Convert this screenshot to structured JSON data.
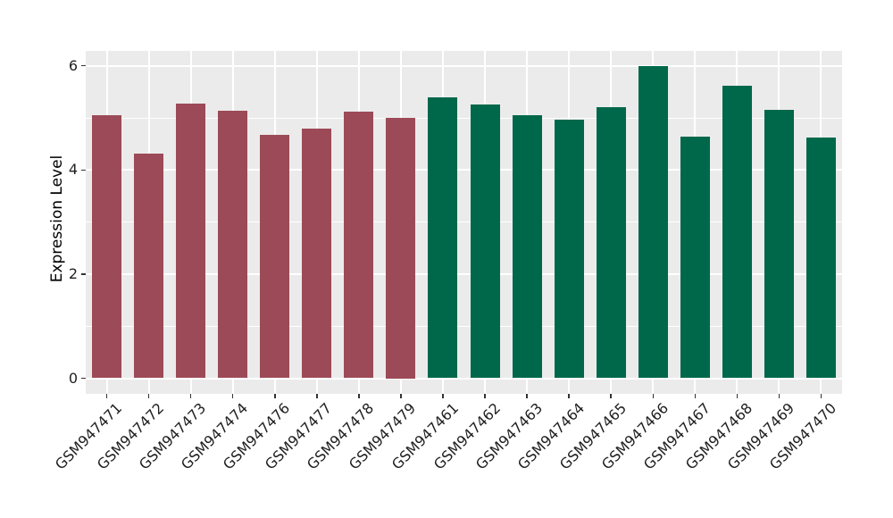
{
  "figure": {
    "background_color": "#FFFFFF",
    "panel_background_color": "#EBEBEB",
    "grid_color": "#FFFFFF",
    "tick_text_color": "#1F1F1F",
    "tick_mark_color": "#333333",
    "axis_title_color": "#000000"
  },
  "chart_data": {
    "type": "bar",
    "title": "",
    "xlabel": "",
    "ylabel": "Expression Level",
    "ylim": [
      0,
      6.3
    ],
    "yticks_major": [
      0,
      2,
      4,
      6
    ],
    "yticks_minor": [
      1,
      3,
      5
    ],
    "grid": true,
    "legend": "none",
    "groups": {
      "group1": {
        "color": "#9C4A57"
      },
      "group2": {
        "color": "#00684A"
      }
    },
    "bars": [
      {
        "label": "GSM947471",
        "value": 5.05,
        "group": "group1"
      },
      {
        "label": "GSM947472",
        "value": 4.31,
        "group": "group1"
      },
      {
        "label": "GSM947473",
        "value": 5.27,
        "group": "group1"
      },
      {
        "label": "GSM947474",
        "value": 5.14,
        "group": "group1"
      },
      {
        "label": "GSM947476",
        "value": 4.68,
        "group": "group1"
      },
      {
        "label": "GSM947477",
        "value": 4.79,
        "group": "group1"
      },
      {
        "label": "GSM947478",
        "value": 5.12,
        "group": "group1"
      },
      {
        "label": "GSM947479",
        "value": 5.0,
        "group": "group1"
      },
      {
        "label": "GSM947461",
        "value": 5.39,
        "group": "group2"
      },
      {
        "label": "GSM947462",
        "value": 5.26,
        "group": "group2"
      },
      {
        "label": "GSM947463",
        "value": 5.06,
        "group": "group2"
      },
      {
        "label": "GSM947464",
        "value": 4.97,
        "group": "group2"
      },
      {
        "label": "GSM947465",
        "value": 5.2,
        "group": "group2"
      },
      {
        "label": "GSM947466",
        "value": 5.99,
        "group": "group2"
      },
      {
        "label": "GSM947467",
        "value": 4.64,
        "group": "group2"
      },
      {
        "label": "GSM947468",
        "value": 5.62,
        "group": "group2"
      },
      {
        "label": "GSM947469",
        "value": 5.15,
        "group": "group2"
      },
      {
        "label": "GSM947470",
        "value": 4.63,
        "group": "group2"
      }
    ]
  }
}
